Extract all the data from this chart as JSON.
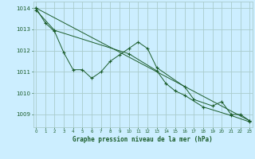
{
  "background_color": "#cceeff",
  "grid_color": "#aacccc",
  "line_color": "#1a5c2a",
  "title": "Graphe pression niveau de la mer (hPa)",
  "xlim": [
    -0.3,
    23.3
  ],
  "ylim": [
    1008.4,
    1014.3
  ],
  "yticks": [
    1009,
    1010,
    1011,
    1012,
    1013,
    1014
  ],
  "xticks": [
    0,
    1,
    2,
    3,
    4,
    5,
    6,
    7,
    8,
    9,
    10,
    11,
    12,
    13,
    14,
    15,
    16,
    17,
    18,
    19,
    20,
    21,
    22,
    23
  ],
  "series1_x": [
    0,
    1,
    2,
    3,
    4,
    5,
    6,
    7,
    8,
    9,
    10,
    11,
    12,
    13,
    16,
    17,
    19,
    20,
    21,
    22,
    23
  ],
  "series1_y": [
    1014.0,
    1013.3,
    1012.9,
    1011.9,
    1011.1,
    1011.1,
    1010.7,
    1011.0,
    1011.5,
    1011.8,
    1012.1,
    1012.4,
    1012.1,
    1011.2,
    1010.3,
    1009.7,
    1009.4,
    1009.6,
    1009.0,
    1009.0,
    1008.7
  ],
  "series2_x": [
    0,
    23
  ],
  "series2_y": [
    1014.0,
    1008.7
  ],
  "series3_x": [
    0,
    2,
    10,
    13,
    14,
    15,
    16,
    18,
    21,
    23
  ],
  "series3_y": [
    1013.9,
    1012.95,
    1011.85,
    1011.05,
    1010.45,
    1010.1,
    1009.9,
    1009.35,
    1008.95,
    1008.65
  ]
}
